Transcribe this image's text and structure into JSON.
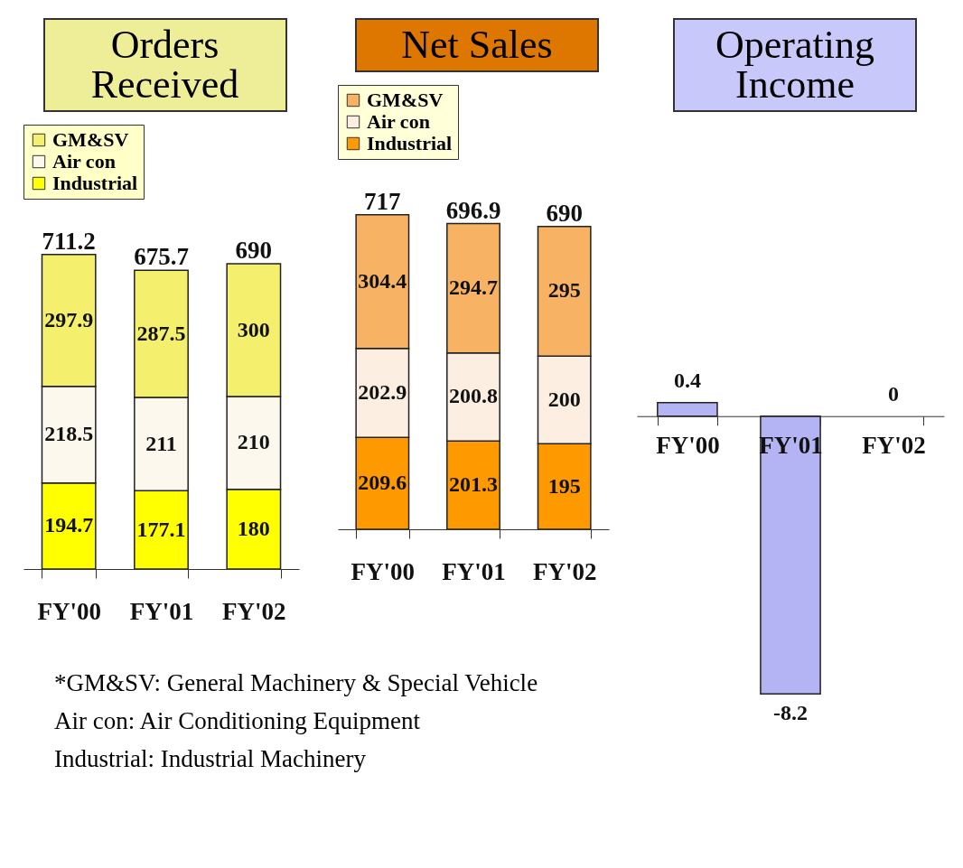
{
  "chart_data": [
    {
      "type": "bar",
      "title": "Orders Received",
      "categories": [
        "FY'00",
        "FY'01",
        "FY'02"
      ],
      "stacked": true,
      "data_labels": true,
      "legend": "top",
      "totals": [
        "711.2",
        "675.7",
        "690"
      ],
      "series": [
        {
          "name": "Industrial",
          "color": "#ffff00",
          "values": [
            194.7,
            177.1,
            180
          ]
        },
        {
          "name": "Air con",
          "color": "#fdf8ee",
          "values": [
            218.5,
            211,
            210
          ]
        },
        {
          "name": "GM&SV",
          "color": "#f5ef6e",
          "values": [
            297.9,
            287.5,
            300
          ]
        }
      ],
      "annotations": [
        "*GM&SV: General Machinery & Special Vehicle",
        "Air con: Air Conditioning Equipment",
        "Industrial: Industrial Machinery"
      ]
    },
    {
      "type": "bar",
      "title": "Net Sales",
      "categories": [
        "FY'00",
        "FY'01",
        "FY'02"
      ],
      "stacked": true,
      "data_labels": true,
      "legend": "top",
      "totals": [
        "717",
        "696.9",
        "690"
      ],
      "series": [
        {
          "name": "Industrial",
          "color": "#ff9900",
          "values": [
            209.6,
            201.3,
            195
          ]
        },
        {
          "name": "Air con",
          "color": "#fcefe2",
          "values": [
            202.9,
            200.8,
            200
          ]
        },
        {
          "name": "GM&SV",
          "color": "#f8b263",
          "values": [
            304.4,
            294.7,
            295
          ]
        }
      ]
    },
    {
      "type": "bar",
      "title": "Operating Income",
      "categories": [
        "FY'00",
        "FY'01",
        "FY'02"
      ],
      "data_labels": true,
      "series": [
        {
          "color": "#b4b4f4",
          "values": [
            0.4,
            -8.2,
            0
          ]
        }
      ]
    }
  ]
}
